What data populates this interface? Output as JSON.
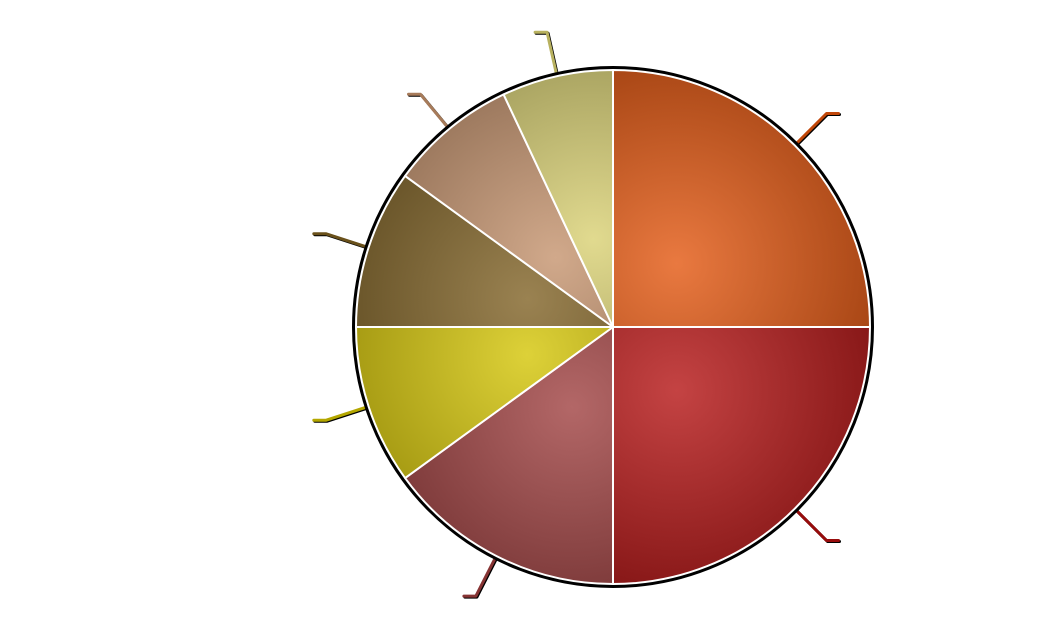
{
  "chart_data": {
    "type": "pie",
    "title": "",
    "categories": [
      "",
      "",
      "",
      "",
      "",
      "",
      ""
    ],
    "values": [
      25,
      25,
      15,
      10,
      10,
      8,
      7
    ],
    "colors": [
      "#e3530a",
      "#b30e0e",
      "#9e3c3c",
      "#d4c400",
      "#7d5f20",
      "#c4916a",
      "#d8d070"
    ],
    "start_angle": "12 o'clock",
    "direction": "clockwise",
    "legend": "none",
    "slice_labels": "none",
    "leader_lines": true
  }
}
